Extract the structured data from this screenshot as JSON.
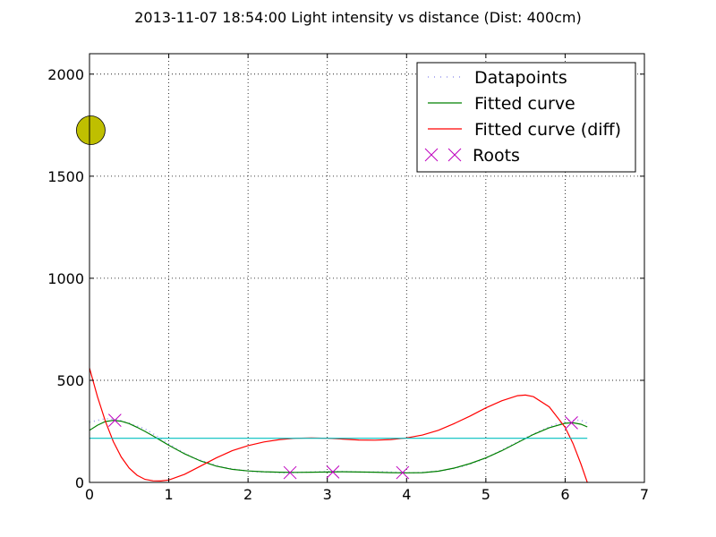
{
  "chart_data": {
    "type": "line",
    "title": "2013-11-07 18:54:00 Light intensity vs distance (Dist: 400cm)",
    "xlabel": "",
    "ylabel": "",
    "xlim": [
      0,
      7
    ],
    "ylim": [
      0,
      2100
    ],
    "xticks": [
      0,
      1,
      2,
      3,
      4,
      5,
      6,
      7
    ],
    "yticks": [
      0,
      500,
      1000,
      1500,
      2000
    ],
    "grid": true,
    "legend_position": "top-right",
    "series": [
      {
        "name": "Datapoints",
        "style": "dotted",
        "color": "#9999ee",
        "x": [
          0,
          0.2,
          0.35,
          0.5,
          0.7,
          0.9,
          1.1,
          1.3,
          1.5,
          1.7,
          1.9,
          2.1,
          2.3,
          2.5,
          2.7,
          2.9,
          3.1,
          3.3,
          3.5,
          3.7,
          3.9,
          4.1,
          4.3,
          4.5,
          4.7,
          4.9,
          5.1,
          5.3,
          5.5,
          5.7,
          5.9,
          6.05,
          6.2,
          6.28
        ],
        "y": [
          295,
          312,
          308,
          290,
          262,
          215,
          165,
          122,
          95,
          72,
          60,
          52,
          50,
          46,
          50,
          52,
          54,
          52,
          50,
          52,
          49,
          47,
          52,
          60,
          78,
          103,
          138,
          178,
          218,
          255,
          288,
          302,
          305,
          290
        ]
      },
      {
        "name": "Fitted curve",
        "style": "solid",
        "color": "#008000",
        "x": [
          0,
          0.1,
          0.2,
          0.3,
          0.4,
          0.5,
          0.6,
          0.7,
          0.8,
          0.9,
          1.0,
          1.2,
          1.4,
          1.6,
          1.8,
          2.0,
          2.2,
          2.4,
          2.6,
          2.8,
          3.0,
          3.2,
          3.4,
          3.6,
          3.8,
          4.0,
          4.2,
          4.4,
          4.6,
          4.8,
          5.0,
          5.2,
          5.4,
          5.6,
          5.8,
          6.0,
          6.1,
          6.2,
          6.28
        ],
        "y": [
          255,
          280,
          298,
          304,
          300,
          288,
          270,
          250,
          228,
          205,
          182,
          140,
          105,
          80,
          64,
          56,
          52,
          50,
          49,
          50,
          51,
          52,
          51,
          50,
          48,
          47,
          48,
          55,
          70,
          92,
          120,
          155,
          195,
          235,
          268,
          290,
          292,
          285,
          272
        ]
      },
      {
        "name": "Fitted curve (diff)",
        "style": "solid",
        "color": "#ff0000",
        "x": [
          0,
          0.1,
          0.2,
          0.3,
          0.4,
          0.5,
          0.6,
          0.7,
          0.8,
          0.9,
          1.0,
          1.2,
          1.4,
          1.6,
          1.8,
          2.0,
          2.2,
          2.4,
          2.6,
          2.8,
          3.0,
          3.2,
          3.4,
          3.6,
          3.8,
          4.0,
          4.2,
          4.4,
          4.6,
          4.8,
          5.0,
          5.2,
          5.4,
          5.5,
          5.6,
          5.8,
          6.0,
          6.1,
          6.2,
          6.28
        ],
        "y": [
          560,
          420,
          300,
          200,
          125,
          70,
          35,
          15,
          8,
          7,
          12,
          40,
          80,
          120,
          155,
          180,
          198,
          210,
          216,
          218,
          216,
          212,
          208,
          207,
          210,
          218,
          232,
          255,
          288,
          325,
          365,
          400,
          425,
          428,
          420,
          370,
          270,
          190,
          90,
          0
        ]
      },
      {
        "name": "",
        "style": "solid",
        "color": "#00bfbf",
        "x": [
          0,
          6.28
        ],
        "y": [
          216,
          216
        ]
      },
      {
        "name": "Roots",
        "style": "marker-x",
        "color": "#bf00bf",
        "x": [
          0.32,
          2.53,
          3.07,
          3.95,
          6.08
        ],
        "y": [
          304,
          48,
          51,
          48,
          292
        ]
      }
    ],
    "annotations": [
      {
        "type": "marker",
        "shape": "circle",
        "color": "#bfbf00",
        "x": 0.05,
        "y": 1725
      }
    ]
  }
}
